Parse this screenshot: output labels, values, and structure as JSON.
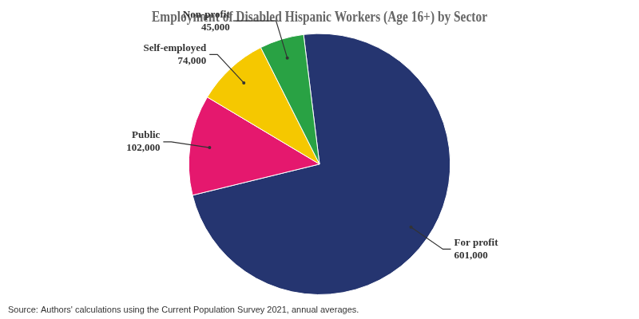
{
  "chart_data": {
    "type": "pie",
    "title": "Employment of Disabled Hispanic Workers (Age 16+) by Sector",
    "categories": [
      "For profit",
      "Public",
      "Self-employed",
      "Non-profit"
    ],
    "values": [
      601000,
      102000,
      74000,
      45000
    ],
    "value_labels": [
      "601,000",
      "102,000",
      "74,000",
      "45,000"
    ],
    "colors": [
      "#253570",
      "#e5186e",
      "#f5c800",
      "#29a244"
    ],
    "data_labels": true,
    "annotations": [
      "Source: Authors' calculations using the Current Population Survey 2021, annual averages."
    ]
  }
}
